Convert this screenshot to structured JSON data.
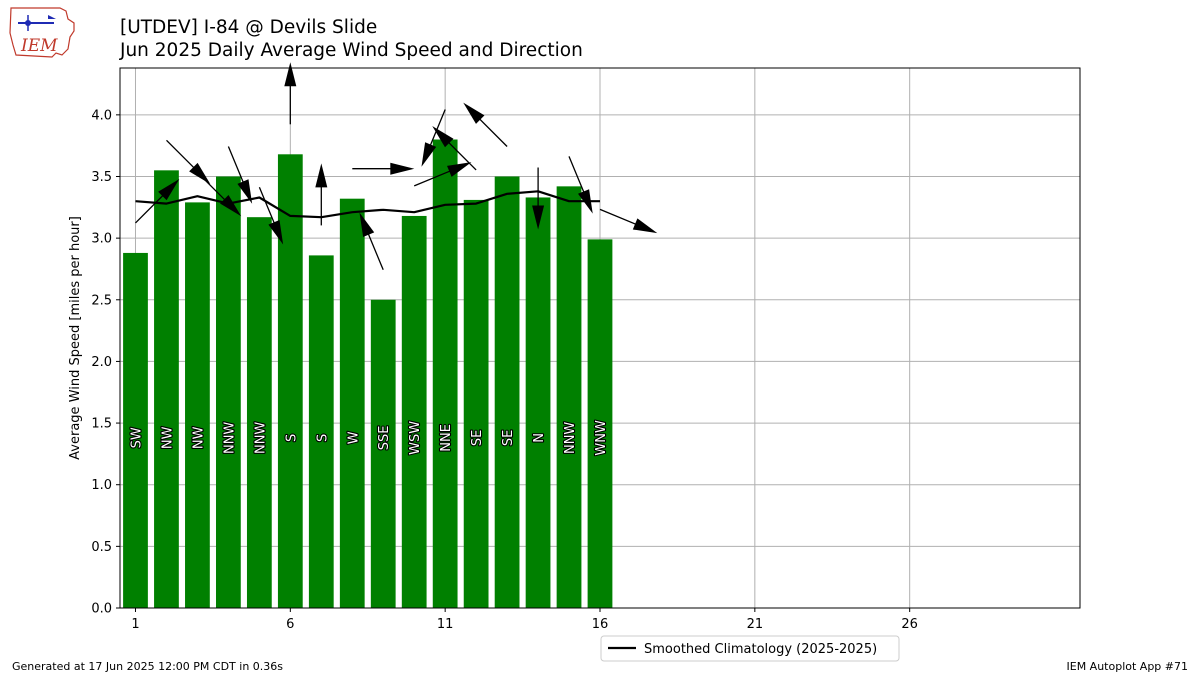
{
  "title": "[UTDEV] I-84 @ Devils Slide",
  "subtitle": "Jun 2025 Daily Average Wind Speed and Direction",
  "logo": {
    "text": "IEM",
    "icon": "iem-logo-iowa-map"
  },
  "footer_left": "Generated at 17 Jun 2025 12:00 PM CDT in 0.36s",
  "footer_right": "IEM Autoplot App #71",
  "colors": {
    "bars": "#008000",
    "climo": "#000000",
    "grid": "#b0b0b0"
  },
  "chart_data": {
    "type": "bar",
    "title": "Jun 2025 Daily Average Wind Speed and Direction",
    "xlabel": "",
    "ylabel": "Average Wind Speed [miles per hour]",
    "x": [
      1,
      2,
      3,
      4,
      5,
      6,
      7,
      8,
      9,
      10,
      11,
      12,
      13,
      14,
      15,
      16
    ],
    "values": [
      2.88,
      3.55,
      3.29,
      3.5,
      3.17,
      3.68,
      2.86,
      3.32,
      2.5,
      3.18,
      3.8,
      3.31,
      3.5,
      3.33,
      3.42,
      2.99
    ],
    "directions": [
      "SW",
      "NW",
      "NW",
      "NNW",
      "NNW",
      "S",
      "S",
      "W",
      "SSE",
      "WSW",
      "NNE",
      "SE",
      "SE",
      "N",
      "NNW",
      "WNW"
    ],
    "climatology": {
      "name": "Smoothed Climatology (2025-2025)",
      "values": [
        3.3,
        3.28,
        3.34,
        3.28,
        3.33,
        3.18,
        3.17,
        3.21,
        3.23,
        3.21,
        3.27,
        3.28,
        3.36,
        3.38,
        3.3,
        3.3
      ]
    },
    "xticks": [
      1,
      6,
      11,
      16,
      21,
      26
    ],
    "yticks": [
      "0.0",
      "0.5",
      "1.0",
      "1.5",
      "2.0",
      "2.5",
      "3.0",
      "3.5",
      "4.0"
    ],
    "xlim": [
      0.5,
      31.5
    ],
    "ylim": [
      0,
      4.38
    ],
    "grid": true,
    "legend_position": "bottom-center"
  }
}
